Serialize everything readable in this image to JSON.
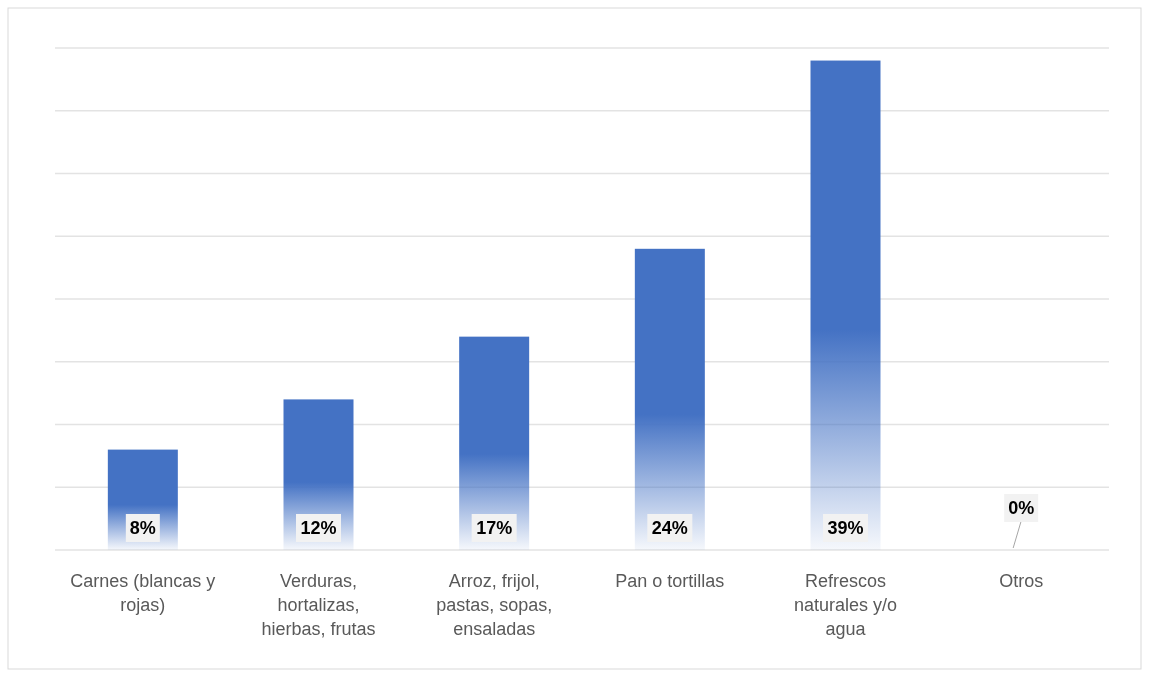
{
  "chart_data": {
    "type": "bar",
    "categories": [
      "Carnes (blancas y rojas)",
      "Verduras, hortalizas, hierbas, frutas",
      "Arroz, frijol, pastas, sopas, ensaladas",
      "Pan o tortillas",
      "Refrescos naturales y/o agua",
      "Otros"
    ],
    "values": [
      8,
      12,
      17,
      24,
      39,
      0
    ],
    "color": "#4472c4",
    "value_labels": [
      "8%",
      "12%",
      "17%",
      "24%",
      "39%",
      "0%"
    ],
    "ylim": [
      0,
      40
    ],
    "yticks": [
      {
        "value": 0,
        "label": null
      },
      {
        "value": 5,
        "label": null
      },
      {
        "value": 10,
        "label": null
      },
      {
        "value": 15,
        "label": null
      },
      {
        "value": 20,
        "label": null
      },
      {
        "value": 25,
        "label": null
      },
      {
        "value": 30,
        "label": null
      },
      {
        "value": 35,
        "label": null
      },
      {
        "value": 40,
        "label": null
      }
    ],
    "tick_labels": "x",
    "grid": "y"
  }
}
